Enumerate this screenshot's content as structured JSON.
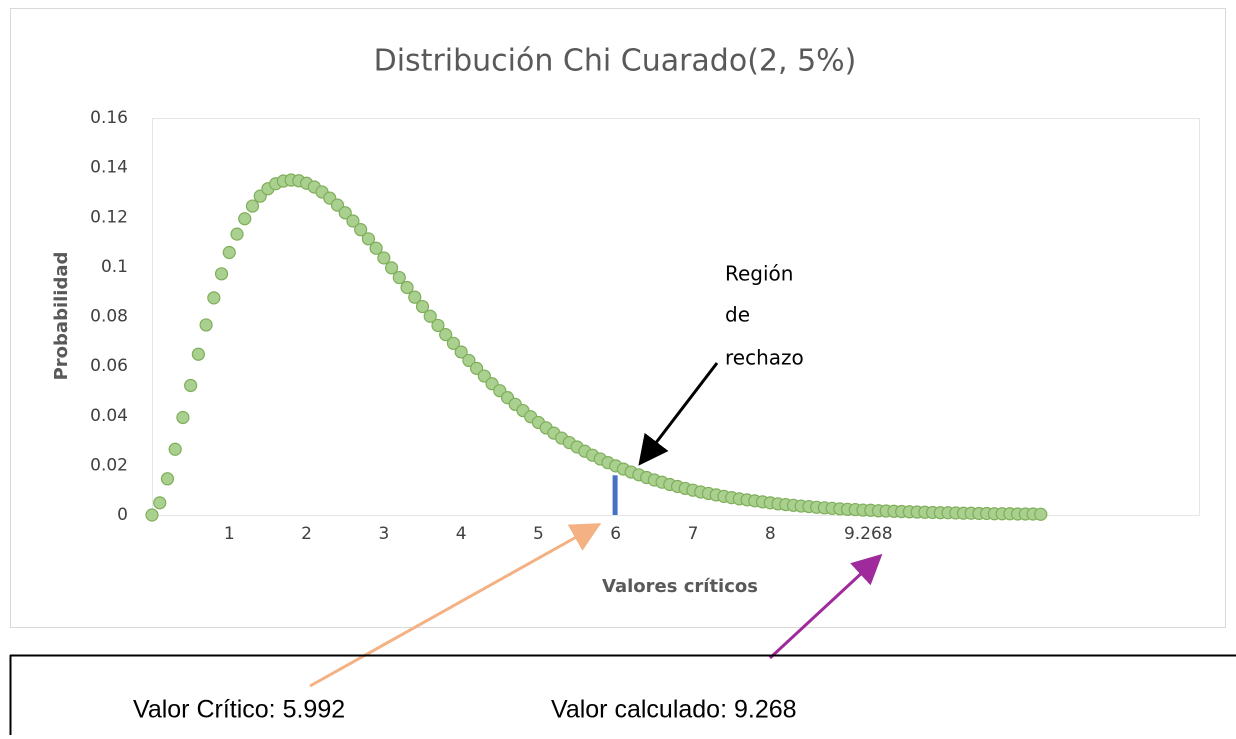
{
  "chart_data": {
    "type": "scatter",
    "title": "Distribución Chi Cuarado(2, 5%)",
    "xlabel": "Valores críticos",
    "ylabel": "Probabilidad",
    "xlim": [
      0,
      13.56
    ],
    "ylim": [
      0,
      0.16
    ],
    "xticks": [
      1,
      2,
      3,
      4,
      5,
      6,
      7,
      8,
      9.268
    ],
    "yticks": [
      0,
      0.02,
      0.04,
      0.06,
      0.08,
      0.1,
      0.12,
      0.14,
      0.16
    ],
    "grid": false,
    "series": [
      {
        "color": "#a9d08e",
        "x": [
          0,
          0.1,
          0.2,
          0.3,
          0.4,
          0.5,
          0.6,
          0.7,
          0.8,
          0.9,
          1,
          1.1,
          1.2,
          1.3,
          1.4,
          1.5,
          1.6,
          1.7,
          1.8,
          1.9,
          2,
          2.1,
          2.2,
          2.3,
          2.4,
          2.5,
          2.6,
          2.7,
          2.8,
          2.9,
          3,
          3.1,
          3.2,
          3.3,
          3.4,
          3.5,
          3.6,
          3.7,
          3.8,
          3.9,
          4,
          4.1,
          4.2,
          4.3,
          4.4,
          4.5,
          4.6,
          4.7,
          4.8,
          4.9,
          5,
          5.1,
          5.2,
          5.3,
          5.4,
          5.5,
          5.6,
          5.7,
          5.8,
          5.9,
          6,
          6.1,
          6.2,
          6.3,
          6.4,
          6.5,
          6.6,
          6.7,
          6.8,
          6.9,
          7,
          7.1,
          7.2,
          7.3,
          7.4,
          7.5,
          7.6,
          7.7,
          7.8,
          7.9,
          8,
          8.1,
          8.2,
          8.3,
          8.4,
          8.5,
          8.6,
          8.7,
          8.8,
          8.9,
          9,
          9.1,
          9.2,
          9.3,
          9.4,
          9.5,
          9.6,
          9.7,
          9.8,
          9.9,
          10,
          10.1,
          10.2,
          10.3,
          10.4,
          10.5,
          10.6,
          10.7,
          10.8,
          10.9,
          11,
          11.1,
          11.2,
          11.3,
          11.4,
          11.5
        ],
        "values": [
          0,
          0.0049,
          0.0146,
          0.0265,
          0.0393,
          0.0522,
          0.0648,
          0.0766,
          0.0875,
          0.0972,
          0.1058,
          0.1132,
          0.1194,
          0.1245,
          0.1285,
          0.1315,
          0.1335,
          0.1346,
          0.135,
          0.1347,
          0.1337,
          0.1322,
          0.1302,
          0.1277,
          0.1249,
          0.1218,
          0.1185,
          0.115,
          0.1113,
          0.1075,
          0.1036,
          0.0996,
          0.0957,
          0.0917,
          0.0878,
          0.084,
          0.0801,
          0.0764,
          0.0727,
          0.0692,
          0.0657,
          0.0623,
          0.0591,
          0.056,
          0.0529,
          0.0501,
          0.0473,
          0.0446,
          0.0421,
          0.0396,
          0.0373,
          0.0351,
          0.033,
          0.031,
          0.0292,
          0.0274,
          0.0257,
          0.0241,
          0.0226,
          0.0211,
          0.0198,
          0.0185,
          0.0173,
          0.0162,
          0.0151,
          0.0141,
          0.0132,
          0.0123,
          0.0115,
          0.0107,
          0.01,
          0.0093,
          0.0087,
          0.0081,
          0.0075,
          0.007,
          0.0065,
          0.0061,
          0.0057,
          0.0053,
          0.0049,
          0.0045,
          0.0042,
          0.0039,
          0.0036,
          0.0034,
          0.0031,
          0.0029,
          0.0027,
          0.0025,
          0.0023,
          0.0022,
          0.002,
          0.0019,
          0.0017,
          0.0016,
          0.0015,
          0.0014,
          0.0013,
          0.0012,
          0.0011,
          0.001,
          0.0009,
          0.0009,
          0.0008,
          0.0007,
          0.0007,
          0.0006,
          0.0006,
          0.0005,
          0.0005,
          0.0005,
          0.0004,
          0.0004,
          0.0004,
          0.0003
        ]
      }
    ],
    "critical_marker": {
      "x": 5.992,
      "value": 0.016,
      "color": "#4472c4"
    },
    "annotation": [
      "Región",
      "de",
      "rechazo"
    ],
    "footer": [
      "Valor Crítico: 5.992",
      "Valor calculado: 9.268"
    ]
  }
}
